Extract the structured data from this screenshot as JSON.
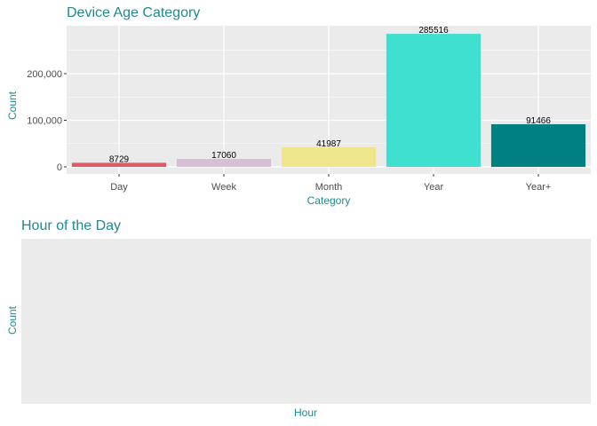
{
  "chart_data": [
    {
      "type": "bar",
      "title": "Device Age Category",
      "xlabel": "Category",
      "ylabel": "Count",
      "categories": [
        "Day",
        "Week",
        "Month",
        "Year",
        "Year+"
      ],
      "values": [
        8729,
        17060,
        41987,
        285516,
        91466
      ],
      "data_labels": [
        "8729",
        "17060",
        "41987",
        "285516",
        "91466"
      ],
      "colors": [
        "#e05a66",
        "#d8bfd8",
        "#f0e68c",
        "#40e0d0",
        "#008080"
      ],
      "ylim": [
        0,
        300000
      ],
      "yticks": [
        0,
        100000,
        200000
      ],
      "ytick_labels": [
        "0",
        "100,000",
        "200,000"
      ],
      "grid": true,
      "legend": "none"
    },
    {
      "type": "bar",
      "title": "Hour of the Day",
      "xlabel": "Hour",
      "ylabel": "Count",
      "categories": [],
      "values": [],
      "grid": false,
      "legend": "none"
    }
  ],
  "style": {
    "panel_background": "#ebebeb",
    "grid_major": "#ffffff",
    "title_color": "#1f8a8f"
  }
}
